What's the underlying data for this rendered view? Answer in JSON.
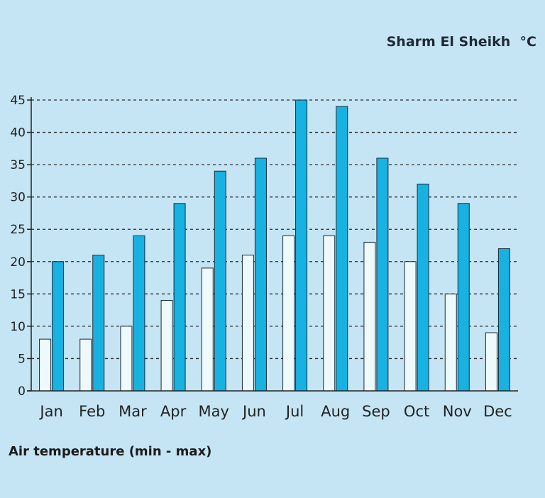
{
  "chart_data": {
    "type": "bar",
    "title": "Sharm El Sheikh  °C",
    "caption": "Air temperature (min - max)",
    "categories": [
      "Jan",
      "Feb",
      "Mar",
      "Apr",
      "May",
      "Jun",
      "Jul",
      "Aug",
      "Sep",
      "Oct",
      "Nov",
      "Dec"
    ],
    "series": [
      {
        "values": [
          8,
          8,
          10,
          14,
          19,
          21,
          24,
          24,
          23,
          20,
          15,
          9
        ],
        "color": "#eef9fc"
      },
      {
        "values": [
          20,
          21,
          24,
          29,
          34,
          36,
          45,
          44,
          36,
          32,
          29,
          22
        ],
        "color": "#18b2e2"
      }
    ],
    "ylim": [
      0,
      45
    ],
    "yticks": [
      0,
      5,
      10,
      15,
      20,
      25,
      30,
      35,
      40,
      45
    ],
    "grid": true,
    "colors": {
      "background": "#c5e5f4",
      "grid": "#2a2a2a",
      "axis": "#222222",
      "bar_outline": "#1a2a36"
    }
  }
}
